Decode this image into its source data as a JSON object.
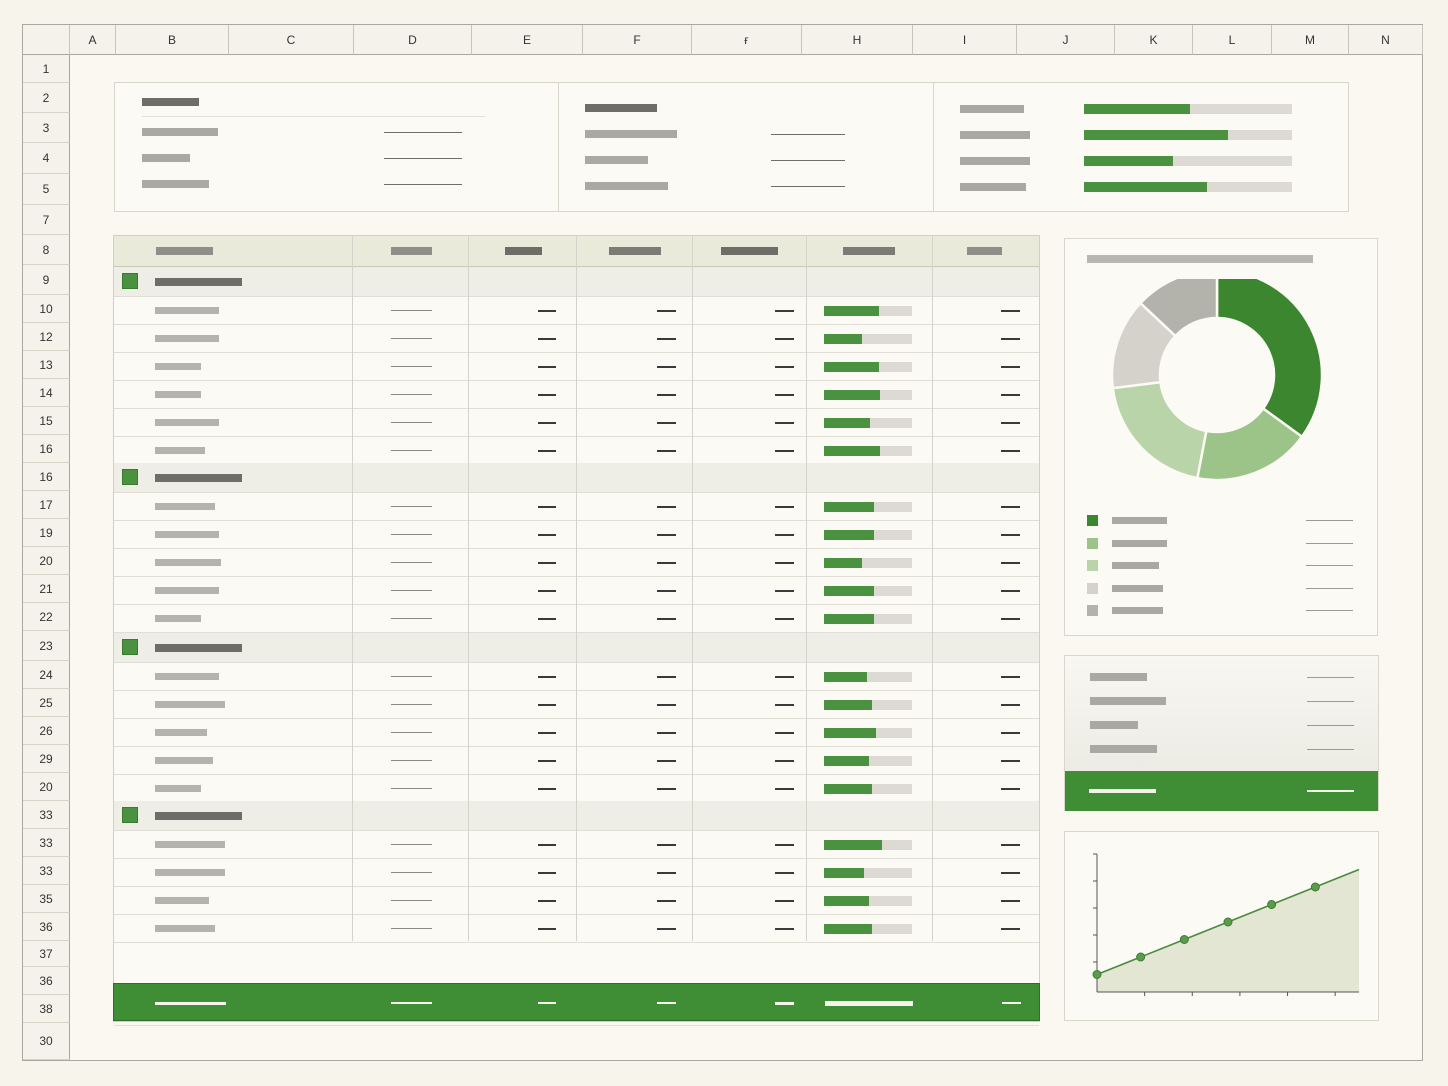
{
  "columns": [
    "A",
    "B",
    "C",
    "D",
    "E",
    "F",
    "ғ",
    "H",
    "I",
    "J",
    "K",
    "L",
    "M",
    "N"
  ],
  "rows": [
    "1",
    "2",
    "3",
    "4",
    "5",
    "7",
    "8",
    "9",
    "10",
    "12",
    "13",
    "14",
    "15",
    "16",
    "16",
    "17",
    "19",
    "20",
    "21",
    "22",
    "23",
    "24",
    "25",
    "26",
    "29",
    "20",
    "33",
    "33",
    "33",
    "35",
    "36",
    "37",
    "36",
    "38",
    "30"
  ],
  "summary_cards": [
    {
      "rows": 4
    },
    {
      "rows": 4
    },
    {
      "progress": [
        0.51,
        0.69,
        0.43,
        0.59
      ]
    }
  ],
  "table": {
    "groups": [
      {
        "progress": [
          0.62,
          0.43,
          0.62,
          0.64,
          0.52,
          0.64
        ]
      },
      {
        "progress": [
          0.57,
          0.57,
          0.43,
          0.57,
          0.57
        ]
      },
      {
        "progress": [
          0.49,
          0.55,
          0.59,
          0.51,
          0.54
        ]
      },
      {
        "progress": [
          0.66,
          0.45,
          0.51,
          0.55
        ]
      }
    ]
  },
  "colors": {
    "accent": "#4a9240",
    "accent_dark": "#3f8d35",
    "header_bg": "#e9ead9",
    "neutral_bar": "#a9a8a2"
  },
  "chart_data": [
    {
      "type": "pie",
      "donut": true,
      "values": [
        35,
        18,
        20,
        14,
        13
      ],
      "colors": [
        "#3c862f",
        "#9cc488",
        "#b9d4a8",
        "#d4d2ca",
        "#b3b2ab"
      ]
    },
    {
      "type": "area",
      "values": [
        1,
        2,
        3,
        4,
        5,
        6,
        7
      ],
      "ylim": [
        0,
        8
      ]
    }
  ]
}
